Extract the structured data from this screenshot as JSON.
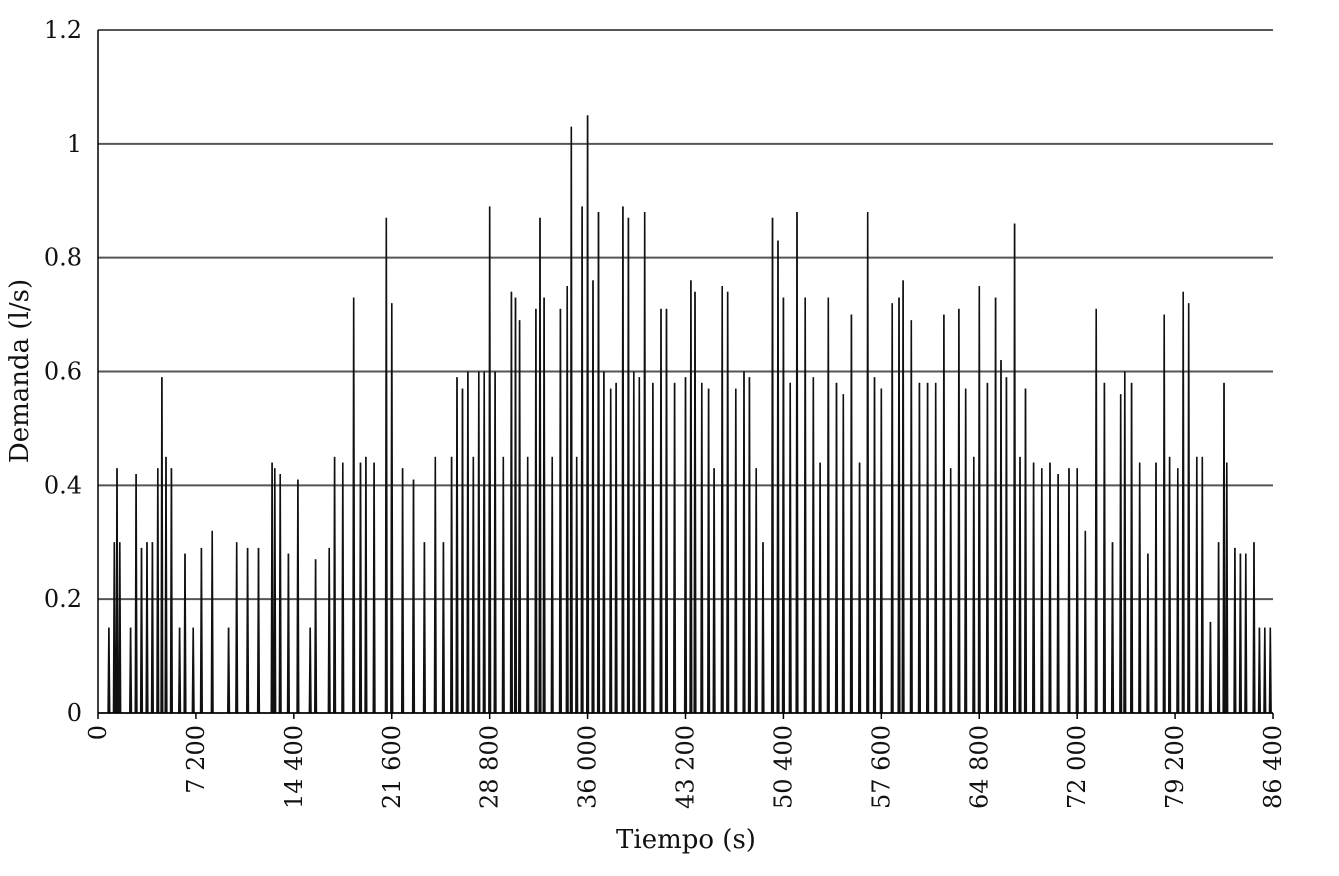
{
  "chart_data": {
    "type": "line",
    "title": "",
    "xlabel": "Tiempo (s)",
    "ylabel": "Demanda (l/s)",
    "xlim": [
      0,
      86400
    ],
    "ylim": [
      0,
      1.2
    ],
    "grid": "horizontal",
    "legend": "none",
    "colors": {
      "series": "#111111",
      "grid": "#555555",
      "axis": "#000000"
    },
    "y_ticks": [
      {
        "value": 0,
        "label": "0"
      },
      {
        "value": 0.2,
        "label": "0.2"
      },
      {
        "value": 0.4,
        "label": "0.4"
      },
      {
        "value": 0.6,
        "label": "0.6"
      },
      {
        "value": 0.8,
        "label": "0.8"
      },
      {
        "value": 1,
        "label": "1"
      },
      {
        "value": 1.2,
        "label": "1.2"
      }
    ],
    "x_ticks": [
      {
        "value": 0,
        "label": "0"
      },
      {
        "value": 7200,
        "label": "7 200"
      },
      {
        "value": 14400,
        "label": "14 400"
      },
      {
        "value": 21600,
        "label": "21 600"
      },
      {
        "value": 28800,
        "label": "28 800"
      },
      {
        "value": 36000,
        "label": "36 000"
      },
      {
        "value": 43200,
        "label": "43 200"
      },
      {
        "value": 50400,
        "label": "50 400"
      },
      {
        "value": 57600,
        "label": "57 600"
      },
      {
        "value": 64800,
        "label": "64 800"
      },
      {
        "value": 72000,
        "label": "72 000"
      },
      {
        "value": 79200,
        "label": "79 200"
      },
      {
        "value": 86400,
        "label": "86 400"
      }
    ],
    "series": [
      {
        "peaks": [
          [
            800,
            0.15
          ],
          [
            1200,
            0.3
          ],
          [
            1400,
            0.43
          ],
          [
            1600,
            0.3
          ],
          [
            2400,
            0.15
          ],
          [
            2800,
            0.42
          ],
          [
            3200,
            0.29
          ],
          [
            3600,
            0.3
          ],
          [
            4000,
            0.3
          ],
          [
            4400,
            0.43
          ],
          [
            4700,
            0.59
          ],
          [
            5000,
            0.45
          ],
          [
            5400,
            0.43
          ],
          [
            6000,
            0.15
          ],
          [
            6400,
            0.28
          ],
          [
            7000,
            0.15
          ],
          [
            7600,
            0.29
          ],
          [
            8400,
            0.32
          ],
          [
            9600,
            0.15
          ],
          [
            10200,
            0.3
          ],
          [
            11000,
            0.29
          ],
          [
            11800,
            0.29
          ],
          [
            12800,
            0.44
          ],
          [
            13000,
            0.43
          ],
          [
            13400,
            0.42
          ],
          [
            14000,
            0.28
          ],
          [
            14700,
            0.41
          ],
          [
            15600,
            0.15
          ],
          [
            16000,
            0.27
          ],
          [
            17000,
            0.29
          ],
          [
            17400,
            0.45
          ],
          [
            18000,
            0.44
          ],
          [
            18800,
            0.73
          ],
          [
            19300,
            0.44
          ],
          [
            19700,
            0.45
          ],
          [
            20300,
            0.44
          ],
          [
            21200,
            0.87
          ],
          [
            21600,
            0.72
          ],
          [
            22400,
            0.43
          ],
          [
            23200,
            0.41
          ],
          [
            24000,
            0.3
          ],
          [
            24800,
            0.45
          ],
          [
            25400,
            0.3
          ],
          [
            26000,
            0.45
          ],
          [
            26400,
            0.59
          ],
          [
            26800,
            0.57
          ],
          [
            27200,
            0.6
          ],
          [
            27600,
            0.45
          ],
          [
            28000,
            0.6
          ],
          [
            28400,
            0.6
          ],
          [
            28800,
            0.89
          ],
          [
            29200,
            0.6
          ],
          [
            29800,
            0.45
          ],
          [
            30400,
            0.74
          ],
          [
            30700,
            0.73
          ],
          [
            31000,
            0.69
          ],
          [
            31600,
            0.45
          ],
          [
            32200,
            0.71
          ],
          [
            32500,
            0.87
          ],
          [
            32800,
            0.73
          ],
          [
            33400,
            0.45
          ],
          [
            34000,
            0.71
          ],
          [
            34500,
            0.75
          ],
          [
            34800,
            1.03
          ],
          [
            35200,
            0.45
          ],
          [
            35600,
            0.89
          ],
          [
            36000,
            1.05
          ],
          [
            36400,
            0.76
          ],
          [
            36800,
            0.88
          ],
          [
            37200,
            0.6
          ],
          [
            37700,
            0.57
          ],
          [
            38100,
            0.58
          ],
          [
            38600,
            0.89
          ],
          [
            39000,
            0.87
          ],
          [
            39400,
            0.6
          ],
          [
            39800,
            0.59
          ],
          [
            40200,
            0.88
          ],
          [
            40800,
            0.58
          ],
          [
            41400,
            0.71
          ],
          [
            41800,
            0.71
          ],
          [
            42400,
            0.58
          ],
          [
            43200,
            0.59
          ],
          [
            43600,
            0.76
          ],
          [
            43900,
            0.74
          ],
          [
            44400,
            0.58
          ],
          [
            44900,
            0.57
          ],
          [
            45300,
            0.43
          ],
          [
            45900,
            0.75
          ],
          [
            46300,
            0.74
          ],
          [
            46900,
            0.57
          ],
          [
            47500,
            0.6
          ],
          [
            47900,
            0.59
          ],
          [
            48400,
            0.43
          ],
          [
            48900,
            0.3
          ],
          [
            49600,
            0.87
          ],
          [
            50000,
            0.83
          ],
          [
            50400,
            0.73
          ],
          [
            50900,
            0.58
          ],
          [
            51400,
            0.88
          ],
          [
            52000,
            0.73
          ],
          [
            52600,
            0.59
          ],
          [
            53100,
            0.44
          ],
          [
            53700,
            0.73
          ],
          [
            54300,
            0.58
          ],
          [
            54800,
            0.56
          ],
          [
            55400,
            0.7
          ],
          [
            56000,
            0.44
          ],
          [
            56600,
            0.88
          ],
          [
            57100,
            0.59
          ],
          [
            57600,
            0.57
          ],
          [
            58400,
            0.72
          ],
          [
            58900,
            0.73
          ],
          [
            59200,
            0.76
          ],
          [
            59800,
            0.69
          ],
          [
            60400,
            0.58
          ],
          [
            61000,
            0.58
          ],
          [
            61600,
            0.58
          ],
          [
            62200,
            0.7
          ],
          [
            62700,
            0.43
          ],
          [
            63300,
            0.71
          ],
          [
            63800,
            0.57
          ],
          [
            64400,
            0.45
          ],
          [
            64800,
            0.75
          ],
          [
            65400,
            0.58
          ],
          [
            66000,
            0.73
          ],
          [
            66400,
            0.62
          ],
          [
            66800,
            0.59
          ],
          [
            67400,
            0.86
          ],
          [
            67800,
            0.45
          ],
          [
            68200,
            0.57
          ],
          [
            68800,
            0.44
          ],
          [
            69400,
            0.43
          ],
          [
            70000,
            0.44
          ],
          [
            70600,
            0.42
          ],
          [
            71400,
            0.43
          ],
          [
            72000,
            0.43
          ],
          [
            72600,
            0.32
          ],
          [
            73400,
            0.71
          ],
          [
            74000,
            0.58
          ],
          [
            74600,
            0.3
          ],
          [
            75200,
            0.56
          ],
          [
            75500,
            0.6
          ],
          [
            76000,
            0.58
          ],
          [
            76600,
            0.44
          ],
          [
            77200,
            0.28
          ],
          [
            77800,
            0.44
          ],
          [
            78400,
            0.7
          ],
          [
            78800,
            0.45
          ],
          [
            79400,
            0.43
          ],
          [
            79800,
            0.74
          ],
          [
            80200,
            0.72
          ],
          [
            80800,
            0.45
          ],
          [
            81200,
            0.45
          ],
          [
            81800,
            0.16
          ],
          [
            82400,
            0.3
          ],
          [
            82800,
            0.58
          ],
          [
            83000,
            0.44
          ],
          [
            83600,
            0.29
          ],
          [
            84000,
            0.28
          ],
          [
            84400,
            0.28
          ],
          [
            85000,
            0.3
          ],
          [
            85400,
            0.15
          ],
          [
            85800,
            0.15
          ],
          [
            86200,
            0.15
          ]
        ]
      }
    ]
  }
}
